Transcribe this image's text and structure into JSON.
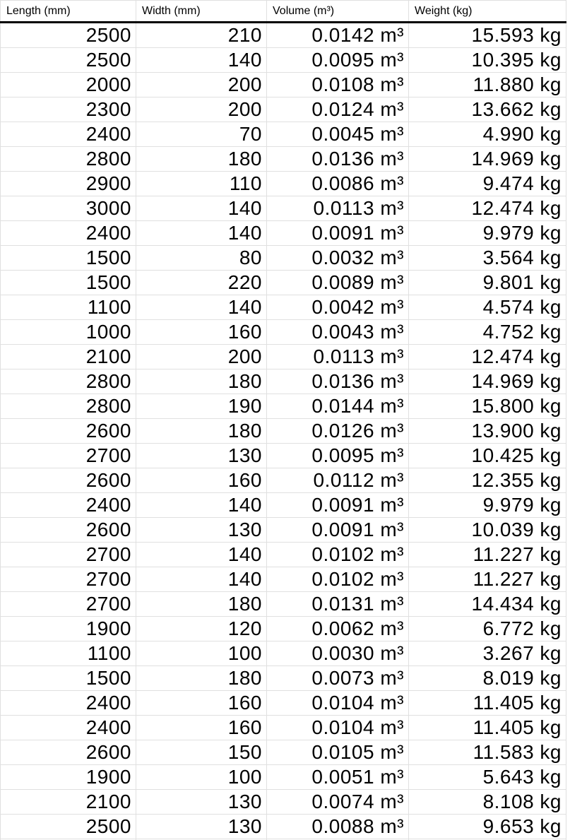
{
  "table": {
    "columns": [
      {
        "key": "length",
        "label": "Length (mm)"
      },
      {
        "key": "width",
        "label": "Width (mm)"
      },
      {
        "key": "volume",
        "label": "Volume (m³)"
      },
      {
        "key": "weight",
        "label": "Weight (kg)"
      }
    ],
    "rows": [
      [
        "2500",
        "210",
        "0.0142 m³",
        "15.593 kg"
      ],
      [
        "2500",
        "140",
        "0.0095 m³",
        "10.395 kg"
      ],
      [
        "2000",
        "200",
        "0.0108 m³",
        "11.880 kg"
      ],
      [
        "2300",
        "200",
        "0.0124 m³",
        "13.662 kg"
      ],
      [
        "2400",
        "70",
        "0.0045 m³",
        "4.990 kg"
      ],
      [
        "2800",
        "180",
        "0.0136 m³",
        "14.969 kg"
      ],
      [
        "2900",
        "110",
        "0.0086 m³",
        "9.474 kg"
      ],
      [
        "3000",
        "140",
        "0.0113 m³",
        "12.474 kg"
      ],
      [
        "2400",
        "140",
        "0.0091 m³",
        "9.979 kg"
      ],
      [
        "1500",
        "80",
        "0.0032 m³",
        "3.564 kg"
      ],
      [
        "1500",
        "220",
        "0.0089 m³",
        "9.801 kg"
      ],
      [
        "1100",
        "140",
        "0.0042 m³",
        "4.574 kg"
      ],
      [
        "1000",
        "160",
        "0.0043 m³",
        "4.752 kg"
      ],
      [
        "2100",
        "200",
        "0.0113 m³",
        "12.474 kg"
      ],
      [
        "2800",
        "180",
        "0.0136 m³",
        "14.969 kg"
      ],
      [
        "2800",
        "190",
        "0.0144 m³",
        "15.800 kg"
      ],
      [
        "2600",
        "180",
        "0.0126 m³",
        "13.900 kg"
      ],
      [
        "2700",
        "130",
        "0.0095 m³",
        "10.425 kg"
      ],
      [
        "2600",
        "160",
        "0.0112 m³",
        "12.355 kg"
      ],
      [
        "2400",
        "140",
        "0.0091 m³",
        "9.979 kg"
      ],
      [
        "2600",
        "130",
        "0.0091 m³",
        "10.039 kg"
      ],
      [
        "2700",
        "140",
        "0.0102 m³",
        "11.227 kg"
      ],
      [
        "2700",
        "140",
        "0.0102 m³",
        "11.227 kg"
      ],
      [
        "2700",
        "180",
        "0.0131 m³",
        "14.434 kg"
      ],
      [
        "1900",
        "120",
        "0.0062 m³",
        "6.772 kg"
      ],
      [
        "1100",
        "100",
        "0.0030 m³",
        "3.267 kg"
      ],
      [
        "1500",
        "180",
        "0.0073 m³",
        "8.019 kg"
      ],
      [
        "2400",
        "160",
        "0.0104 m³",
        "11.405 kg"
      ],
      [
        "2400",
        "160",
        "0.0104 m³",
        "11.405 kg"
      ],
      [
        "2600",
        "150",
        "0.0105 m³",
        "11.583 kg"
      ],
      [
        "1900",
        "100",
        "0.0051 m³",
        "5.643 kg"
      ],
      [
        "2100",
        "130",
        "0.0074 m³",
        "8.108 kg"
      ],
      [
        "2500",
        "130",
        "0.0088 m³",
        "9.653 kg"
      ]
    ]
  },
  "colors": {
    "grid_line": "#e0e0e0",
    "header_underline": "#000000",
    "text": "#000000",
    "background": "#ffffff"
  }
}
